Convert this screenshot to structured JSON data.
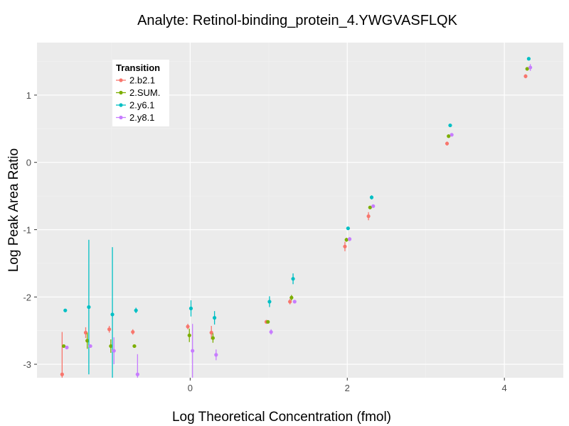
{
  "chart_data": {
    "type": "scatter",
    "title": "Analyte: Retinol-binding_protein_4.YWGVASFLQK",
    "xlabel": "Log Theoretical Concentration (fmol)",
    "ylabel": "Log Peak Area Ratio",
    "xlim": [
      -1.95,
      4.75
    ],
    "ylim": [
      -3.2,
      1.78
    ],
    "xticks": [
      0,
      2,
      4
    ],
    "xtick_labels": [
      "0",
      "2",
      "4"
    ],
    "yticks": [
      -3,
      -2,
      -1,
      0,
      1
    ],
    "ytick_labels": [
      "-3",
      "-2",
      "-1",
      "0",
      "1"
    ],
    "legend": {
      "title": "Transition",
      "position": "top-left"
    },
    "series": [
      {
        "name": "2.b2.1",
        "color": "#F8766D",
        "offset": -0.03,
        "x": [
          -1.6,
          -1.3,
          -1.0,
          -0.7,
          0.0,
          0.3,
          1.0,
          1.3,
          2.0,
          2.3,
          3.3,
          4.3
        ],
        "y": [
          -3.15,
          -2.53,
          -2.48,
          -2.52,
          -2.44,
          -2.53,
          -2.37,
          -2.07,
          -1.25,
          -0.8,
          0.28,
          1.28
        ],
        "err": [
          0.63,
          0.08,
          0.05,
          0.04,
          0.04,
          0.1,
          0.03,
          0.04,
          0.07,
          0.06,
          0.03,
          0.03
        ]
      },
      {
        "name": "2.SUM.",
        "color": "#7CAE00",
        "offset": -0.01,
        "x": [
          -1.6,
          -1.3,
          -1.0,
          -0.7,
          0.0,
          0.3,
          1.0,
          1.3,
          2.0,
          2.3,
          3.3,
          4.3
        ],
        "y": [
          -2.73,
          -2.65,
          -2.73,
          -2.73,
          -2.57,
          -2.61,
          -2.37,
          -2.01,
          -1.15,
          -0.67,
          0.39,
          1.39
        ],
        "err": [
          0.02,
          0.12,
          0.1,
          0.02,
          0.1,
          0.07,
          0.02,
          0.04,
          0.03,
          0.02,
          0.02,
          0.02
        ]
      },
      {
        "name": "2.y6.1",
        "color": "#00BFC4",
        "offset": 0.01,
        "x": [
          -1.6,
          -1.3,
          -1.0,
          -0.7,
          0.0,
          0.3,
          1.0,
          1.3,
          2.0,
          2.3,
          3.3,
          4.3
        ],
        "y": [
          -2.2,
          -2.15,
          -2.26,
          -2.2,
          -2.17,
          -2.31,
          -2.07,
          -1.73,
          -0.98,
          -0.52,
          0.55,
          1.54
        ],
        "err": [
          0.01,
          1.0,
          1.0,
          0.04,
          0.12,
          0.1,
          0.08,
          0.08,
          0.02,
          0.03,
          0.02,
          0.02
        ]
      },
      {
        "name": "2.y8.1",
        "color": "#C77CFF",
        "offset": 0.03,
        "x": [
          -1.6,
          -1.3,
          -1.0,
          -0.7,
          0.0,
          0.3,
          1.0,
          1.3,
          2.0,
          2.3,
          3.3,
          4.3
        ],
        "y": [
          -2.75,
          -2.73,
          -2.8,
          -3.15,
          -2.8,
          -2.86,
          -2.52,
          -2.07,
          -1.14,
          -0.65,
          0.41,
          1.41
        ],
        "err": [
          0.02,
          0.02,
          0.2,
          0.3,
          0.4,
          0.08,
          0.04,
          0.02,
          0.03,
          0.02,
          0.02,
          0.05
        ]
      }
    ]
  }
}
